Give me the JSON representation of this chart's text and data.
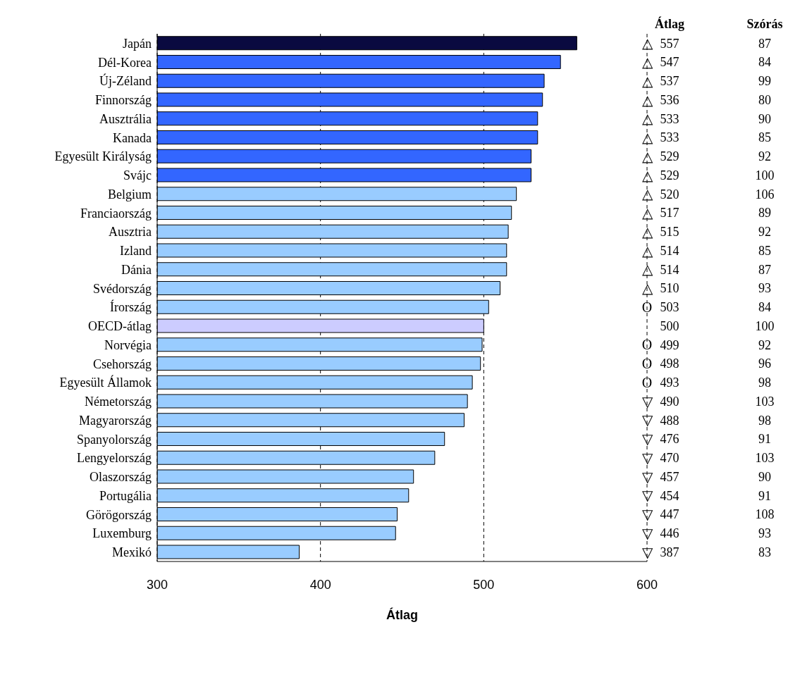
{
  "chart_data": {
    "type": "bar",
    "orientation": "horizontal",
    "xlabel": "Átlag",
    "categories": [
      "Japán",
      "Dél-Korea",
      "Új-Zéland",
      "Finnország",
      "Ausztrália",
      "Kanada",
      "Egyesült Királyság",
      "Svájc",
      "Belgium",
      "Franciaország",
      "Ausztria",
      "Izland",
      "Dánia",
      "Svédország",
      "Írország",
      "OECD-átlag",
      "Norvégia",
      "Csehország",
      "Egyesült Államok",
      "Németország",
      "Magyarország",
      "Spanyolország",
      "Lengyelország",
      "Olaszország",
      "Portugália",
      "Görögország",
      "Luxemburg",
      "Mexikó"
    ],
    "values": [
      557,
      547,
      537,
      536,
      533,
      533,
      529,
      529,
      520,
      517,
      515,
      514,
      514,
      510,
      503,
      500,
      499,
      498,
      493,
      490,
      488,
      476,
      470,
      457,
      454,
      447,
      446,
      387
    ],
    "colors": [
      "#0a0a40",
      "#3366ff",
      "#3366ff",
      "#3366ff",
      "#3366ff",
      "#3366ff",
      "#3366ff",
      "#3366ff",
      "#99ccff",
      "#99ccff",
      "#99ccff",
      "#99ccff",
      "#99ccff",
      "#99ccff",
      "#99ccff",
      "#ccccff",
      "#99ccff",
      "#99ccff",
      "#99ccff",
      "#99ccff",
      "#99ccff",
      "#99ccff",
      "#99ccff",
      "#99ccff",
      "#99ccff",
      "#99ccff",
      "#99ccff",
      "#99ccff"
    ],
    "data_labels": true,
    "xlim": [
      300,
      600
    ],
    "xticks": [
      300,
      400,
      500,
      600
    ],
    "grid": "x",
    "line_style": "dashed",
    "legend": false,
    "annotations": [
      "Átlag",
      "Szórás",
      "87",
      "84",
      "99",
      "80",
      "90",
      "85",
      "92",
      "100",
      "106",
      "89",
      "92",
      "85",
      "87",
      "93",
      "84",
      "100",
      "92",
      "96",
      "98",
      "103",
      "98",
      "91",
      "103",
      "90",
      "91",
      "108",
      "93",
      "83",
      "△",
      "△",
      "△",
      "△",
      "△",
      "△",
      "△",
      "△",
      "△",
      "△",
      "△",
      "△",
      "△",
      "△",
      "O",
      "O",
      "O",
      "O",
      "▽",
      "▽",
      "▽",
      "▽",
      "▽",
      "▽",
      "▽",
      "▽",
      "▽"
    ]
  }
}
